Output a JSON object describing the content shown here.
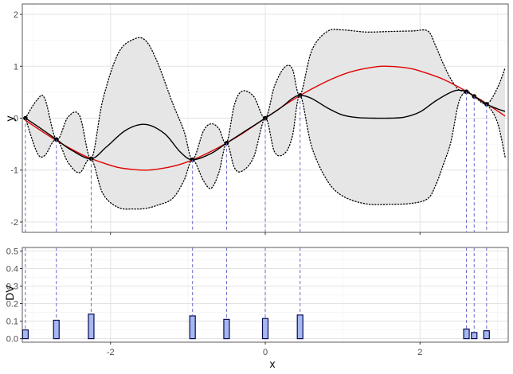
{
  "colors": {
    "true_function": "#e00000",
    "gp_mean": "#000000",
    "band_fill": "#e6e6e6",
    "band_border": "#000000",
    "guide_line": "#6b6bc8",
    "bar_fill": "#a5b8f2",
    "bar_stroke": "#0a0a50",
    "grid_major": "#e3e3e3",
    "grid_minor": "#f1f1f1",
    "panel_border": "#333333"
  },
  "chart_data": [
    {
      "id": "gp_panel",
      "type": "line",
      "xlabel": "",
      "ylabel": "y",
      "xlim": [
        -3.14,
        3.14
      ],
      "ylim": [
        -2.2,
        2.2
      ],
      "yticks": [
        -2,
        -1,
        0,
        1,
        2
      ],
      "ytick_labels": [
        "-2",
        "-1",
        "0",
        "1",
        "2"
      ],
      "xticks": [
        -2,
        0,
        2
      ],
      "grid": true,
      "observations": {
        "x": [
          -3.1,
          -2.7,
          -2.25,
          -0.94,
          -0.5,
          0.0,
          0.45,
          2.6,
          2.7,
          2.86
        ],
        "y": [
          0.0,
          -0.41,
          -0.78,
          -0.8,
          -0.48,
          0.0,
          0.44,
          0.51,
          0.42,
          0.27
        ]
      },
      "series": [
        {
          "role": "true_function",
          "x": [
            -3.1,
            -2.9,
            -2.7,
            -2.5,
            -2.3,
            -2.1,
            -1.9,
            -1.7,
            -1.5,
            -1.3,
            -1.1,
            -0.9,
            -0.7,
            -0.5,
            -0.3,
            -0.1,
            0.1,
            0.3,
            0.5,
            0.7,
            0.9,
            1.1,
            1.3,
            1.5,
            1.7,
            1.9,
            2.1,
            2.3,
            2.5,
            2.7,
            2.9,
            3.1
          ],
          "y": [
            -0.04,
            -0.24,
            -0.43,
            -0.6,
            -0.75,
            -0.86,
            -0.95,
            -0.99,
            -1.0,
            -0.96,
            -0.89,
            -0.78,
            -0.64,
            -0.48,
            -0.3,
            -0.1,
            0.1,
            0.3,
            0.48,
            0.64,
            0.78,
            0.89,
            0.96,
            1.0,
            0.99,
            0.95,
            0.86,
            0.75,
            0.6,
            0.43,
            0.24,
            0.04
          ]
        },
        {
          "role": "gp_mean",
          "x": [
            -3.1,
            -2.9,
            -2.7,
            -2.5,
            -2.25,
            -2.05,
            -1.8,
            -1.55,
            -1.3,
            -1.1,
            -0.94,
            -0.7,
            -0.5,
            -0.25,
            0.0,
            0.2,
            0.35,
            0.45,
            0.6,
            0.8,
            1.0,
            1.2,
            1.4,
            1.6,
            1.8,
            2.0,
            2.2,
            2.4,
            2.5,
            2.6,
            2.7,
            2.86,
            3.0,
            3.1
          ],
          "y": [
            0.0,
            -0.2,
            -0.41,
            -0.62,
            -0.78,
            -0.55,
            -0.23,
            -0.12,
            -0.3,
            -0.65,
            -0.8,
            -0.68,
            -0.48,
            -0.24,
            0.0,
            0.2,
            0.38,
            0.44,
            0.38,
            0.2,
            0.06,
            0.01,
            0.0,
            0.0,
            0.02,
            0.12,
            0.33,
            0.5,
            0.54,
            0.51,
            0.42,
            0.27,
            0.18,
            0.13
          ]
        }
      ],
      "band": {
        "x": [
          -3.1,
          -2.95,
          -2.85,
          -2.7,
          -2.55,
          -2.4,
          -2.25,
          -2.1,
          -1.9,
          -1.7,
          -1.55,
          -1.4,
          -1.2,
          -1.05,
          -0.94,
          -0.8,
          -0.7,
          -0.6,
          -0.5,
          -0.4,
          -0.3,
          -0.15,
          0.0,
          0.12,
          0.25,
          0.35,
          0.45,
          0.6,
          0.8,
          1.0,
          1.3,
          1.6,
          1.9,
          2.1,
          2.2,
          2.3,
          2.4,
          2.5,
          2.6,
          2.7,
          2.86,
          3.0,
          3.1
        ],
        "upper": [
          0.0,
          0.35,
          0.38,
          -0.41,
          0.02,
          0.05,
          -0.78,
          0.35,
          1.25,
          1.52,
          1.5,
          1.1,
          0.3,
          -0.25,
          -0.8,
          -0.25,
          -0.11,
          -0.2,
          -0.48,
          0.25,
          0.52,
          0.42,
          0.0,
          0.62,
          0.98,
          0.95,
          0.44,
          1.3,
          1.67,
          1.7,
          1.66,
          1.67,
          1.68,
          1.68,
          1.4,
          1.05,
          0.75,
          0.55,
          0.51,
          0.42,
          0.27,
          0.58,
          0.97
        ],
        "lower": [
          0.0,
          -0.66,
          -0.72,
          -0.41,
          -0.85,
          -1.05,
          -0.78,
          -1.45,
          -1.72,
          -1.75,
          -1.74,
          -1.68,
          -1.55,
          -1.2,
          -0.8,
          -1.2,
          -1.35,
          -1.05,
          -0.48,
          -0.95,
          -1.02,
          -0.75,
          0.0,
          -0.65,
          -0.68,
          -0.35,
          0.44,
          -0.55,
          -1.2,
          -1.5,
          -1.65,
          -1.66,
          -1.64,
          -1.55,
          -1.3,
          -0.9,
          -0.45,
          0.3,
          0.51,
          0.42,
          0.27,
          -0.08,
          -0.75
        ]
      }
    },
    {
      "id": "dv_panel",
      "type": "bar",
      "xlabel": "x",
      "ylabel": "DV",
      "xlim": [
        -3.14,
        3.14
      ],
      "ylim": [
        -0.02,
        0.52
      ],
      "yticks": [
        0.0,
        0.1,
        0.2,
        0.3,
        0.4,
        0.5
      ],
      "ytick_labels": [
        "0.0",
        "0.1",
        "0.2",
        "0.3",
        "0.4",
        "0.5"
      ],
      "xticks": [
        -2,
        0,
        2
      ],
      "xtick_labels": [
        "-2",
        "0",
        "2"
      ],
      "grid": true,
      "x": [
        -3.1,
        -2.7,
        -2.25,
        -0.94,
        -0.5,
        0.0,
        0.45,
        2.6,
        2.7,
        2.86
      ],
      "values": [
        0.05,
        0.105,
        0.14,
        0.13,
        0.11,
        0.115,
        0.135,
        0.055,
        0.035,
        0.045
      ]
    }
  ]
}
